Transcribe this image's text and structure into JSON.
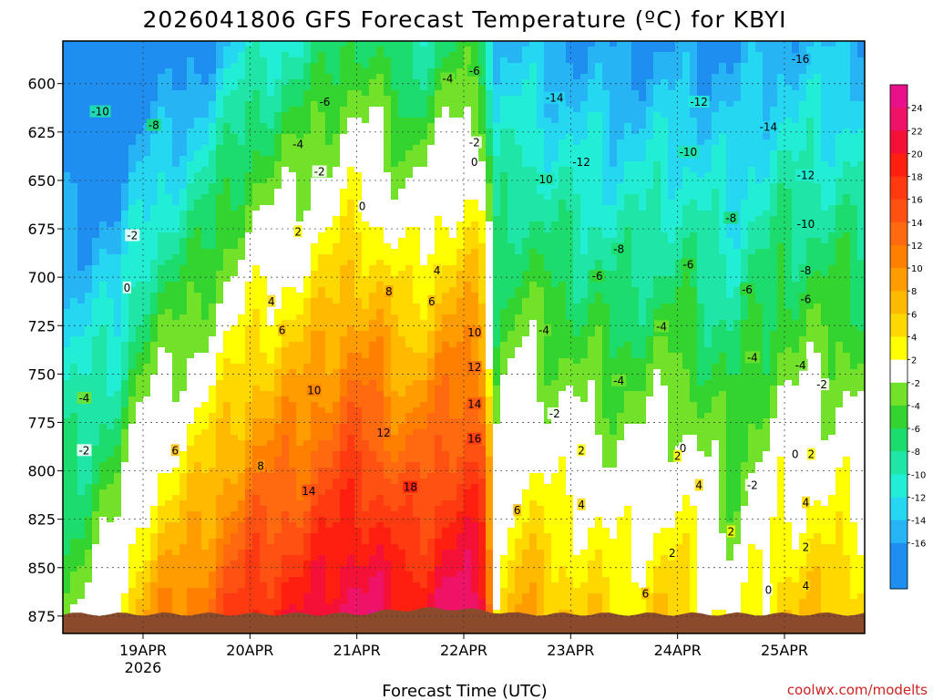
{
  "chart_data": {
    "type": "heatmap",
    "title": "2026041806 GFS Forecast Temperature (ºC) for KBYI",
    "xlabel": "Forecast Time (UTC)",
    "ylabel": "",
    "credit": "coolwx.com/modelts",
    "y_axis": {
      "ticks": [
        600,
        625,
        650,
        675,
        700,
        725,
        750,
        775,
        800,
        825,
        850,
        875
      ],
      "tick_labels": [
        "600",
        "625",
        "650",
        "675",
        "700",
        "725",
        "750",
        "775",
        "800",
        "825",
        "850",
        "875"
      ],
      "range": [
        578,
        884
      ]
    },
    "x_axis": {
      "ticks": [
        19,
        20,
        21,
        22,
        23,
        24,
        25
      ],
      "tick_labels": [
        "19APR",
        "20APR",
        "21APR",
        "22APR",
        "23APR",
        "24APR",
        "25APR"
      ],
      "year_label": "2026",
      "range_days": [
        18.25,
        25.75
      ]
    },
    "colorbar": {
      "labels": [
        "24",
        "22",
        "20",
        "18",
        "16",
        "14",
        "12",
        "10",
        "8",
        "6",
        "4",
        "2",
        "-2",
        "-4",
        "-6",
        "-8",
        "-10",
        "-12",
        "-14",
        "-16"
      ]
    },
    "temperature_profile": {
      "times_day": [
        18.25,
        18.75,
        19.0,
        19.5,
        20.0,
        20.5,
        21.0,
        21.5,
        22.0,
        22.2,
        22.3,
        22.5,
        23.0,
        23.5,
        24.0,
        24.5,
        25.0,
        25.5,
        25.75
      ],
      "surface_temp_c": [
        -4,
        2,
        8,
        12,
        18,
        20,
        24,
        20,
        24,
        22,
        2,
        8,
        6,
        4,
        6,
        0,
        6,
        6,
        6
      ],
      "lapse_c_per_hpa": [
        0.06,
        0.09,
        0.095,
        0.1,
        0.1,
        0.1,
        0.1,
        0.1,
        0.1,
        0.1,
        0.055,
        0.075,
        0.075,
        0.07,
        0.075,
        0.055,
        0.07,
        0.07,
        0.07
      ]
    },
    "surface_pressure_hpa": 874,
    "contour_labels": [
      {
        "v": "-10",
        "t": 18.6,
        "p": 615
      },
      {
        "v": "-8",
        "t": 19.1,
        "p": 622
      },
      {
        "v": "-6",
        "t": 20.7,
        "p": 610
      },
      {
        "v": "-4",
        "t": 20.45,
        "p": 632
      },
      {
        "v": "-4",
        "t": 21.85,
        "p": 598
      },
      {
        "v": "-6",
        "t": 22.1,
        "p": 594
      },
      {
        "v": "-2",
        "t": 20.65,
        "p": 646
      },
      {
        "v": "-2",
        "t": 22.1,
        "p": 631
      },
      {
        "v": "0",
        "t": 21.05,
        "p": 664
      },
      {
        "v": "0",
        "t": 22.1,
        "p": 641
      },
      {
        "v": "-2",
        "t": 18.9,
        "p": 679
      },
      {
        "v": "0",
        "t": 18.85,
        "p": 706
      },
      {
        "v": "2",
        "t": 20.45,
        "p": 677
      },
      {
        "v": "4",
        "t": 20.2,
        "p": 713
      },
      {
        "v": "4",
        "t": 21.75,
        "p": 697
      },
      {
        "v": "6",
        "t": 20.3,
        "p": 728
      },
      {
        "v": "6",
        "t": 21.7,
        "p": 713
      },
      {
        "v": "8",
        "t": 21.3,
        "p": 708
      },
      {
        "v": "10",
        "t": 20.6,
        "p": 759
      },
      {
        "v": "10",
        "t": 22.1,
        "p": 729
      },
      {
        "v": "12",
        "t": 21.25,
        "p": 781
      },
      {
        "v": "12",
        "t": 22.1,
        "p": 747
      },
      {
        "v": "14",
        "t": 20.55,
        "p": 811
      },
      {
        "v": "14",
        "t": 22.1,
        "p": 766
      },
      {
        "v": "16",
        "t": 22.1,
        "p": 784
      },
      {
        "v": "18",
        "t": 21.5,
        "p": 809
      },
      {
        "v": "6",
        "t": 19.3,
        "p": 790
      },
      {
        "v": "8",
        "t": 20.1,
        "p": 798
      },
      {
        "v": "-4",
        "t": 18.45,
        "p": 763
      },
      {
        "v": "-2",
        "t": 18.45,
        "p": 790
      },
      {
        "v": "-14",
        "t": 22.85,
        "p": 608
      },
      {
        "v": "-12",
        "t": 23.1,
        "p": 641
      },
      {
        "v": "-10",
        "t": 22.75,
        "p": 650
      },
      {
        "v": "-8",
        "t": 23.45,
        "p": 686
      },
      {
        "v": "-6",
        "t": 23.25,
        "p": 700
      },
      {
        "v": "-4",
        "t": 22.75,
        "p": 728
      },
      {
        "v": "-2",
        "t": 22.85,
        "p": 771
      },
      {
        "v": "2",
        "t": 23.1,
        "p": 790
      },
      {
        "v": "4",
        "t": 23.1,
        "p": 818
      },
      {
        "v": "6",
        "t": 22.5,
        "p": 821
      },
      {
        "v": "-12",
        "t": 24.2,
        "p": 610
      },
      {
        "v": "-10",
        "t": 24.1,
        "p": 636
      },
      {
        "v": "-8",
        "t": 24.5,
        "p": 670
      },
      {
        "v": "-6",
        "t": 24.1,
        "p": 694
      },
      {
        "v": "-4",
        "t": 24.7,
        "p": 742
      },
      {
        "v": "-4",
        "t": 23.45,
        "p": 754
      },
      {
        "v": "-4",
        "t": 23.85,
        "p": 726
      },
      {
        "v": "-6",
        "t": 24.65,
        "p": 707
      },
      {
        "v": "-8",
        "t": 25.2,
        "p": 697
      },
      {
        "v": "-10",
        "t": 25.2,
        "p": 673
      },
      {
        "v": "-12",
        "t": 25.2,
        "p": 648
      },
      {
        "v": "-14",
        "t": 24.85,
        "p": 623
      },
      {
        "v": "-16",
        "t": 25.15,
        "p": 588
      },
      {
        "v": "-6",
        "t": 25.2,
        "p": 712
      },
      {
        "v": "-4",
        "t": 25.15,
        "p": 746
      },
      {
        "v": "-2",
        "t": 25.35,
        "p": 756
      },
      {
        "v": "-2",
        "t": 24.7,
        "p": 808
      },
      {
        "v": "0",
        "t": 24.05,
        "p": 789
      },
      {
        "v": "2",
        "t": 24.0,
        "p": 793
      },
      {
        "v": "4",
        "t": 24.2,
        "p": 808
      },
      {
        "v": "2",
        "t": 24.5,
        "p": 832
      },
      {
        "v": "2",
        "t": 23.95,
        "p": 843
      },
      {
        "v": "0",
        "t": 25.1,
        "p": 792
      },
      {
        "v": "2",
        "t": 25.25,
        "p": 792
      },
      {
        "v": "4",
        "t": 25.2,
        "p": 817
      },
      {
        "v": "2",
        "t": 25.2,
        "p": 840
      },
      {
        "v": "4",
        "t": 25.2,
        "p": 860
      },
      {
        "v": "0",
        "t": 24.85,
        "p": 862
      },
      {
        "v": "6",
        "t": 23.7,
        "p": 864
      }
    ]
  }
}
